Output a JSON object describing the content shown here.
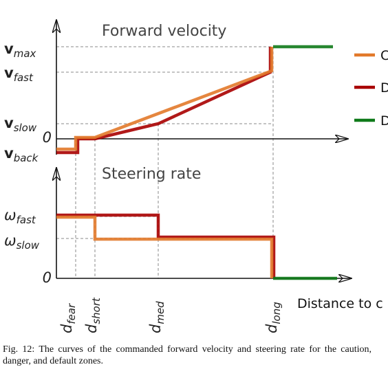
{
  "top_panel": {
    "title": "Forward velocity",
    "y_labels": [
      {
        "symbol": "v",
        "sub": "max"
      },
      {
        "symbol": "v",
        "sub": "fast"
      },
      {
        "symbol": "v",
        "sub": "slow"
      },
      {
        "symbol": "0",
        "sub": ""
      },
      {
        "symbol": "v",
        "sub": "back"
      }
    ]
  },
  "bottom_panel": {
    "title": "Steering rate",
    "y_labels": [
      {
        "symbol": "ω",
        "sub": "fast"
      },
      {
        "symbol": "ω",
        "sub": "slow"
      },
      {
        "symbol": "0",
        "sub": ""
      }
    ]
  },
  "x_labels": [
    {
      "symbol": "d",
      "sub": "fear"
    },
    {
      "symbol": "d",
      "sub": "short"
    },
    {
      "symbol": "d",
      "sub": "med"
    },
    {
      "symbol": "d",
      "sub": "long"
    }
  ],
  "x_axis_title": "Distance to c",
  "legend": [
    "C",
    "D",
    "D"
  ],
  "caption": "Fig. 12: The curves of the commanded forward velocity and steering rate for the caution, danger, and default zones."
}
